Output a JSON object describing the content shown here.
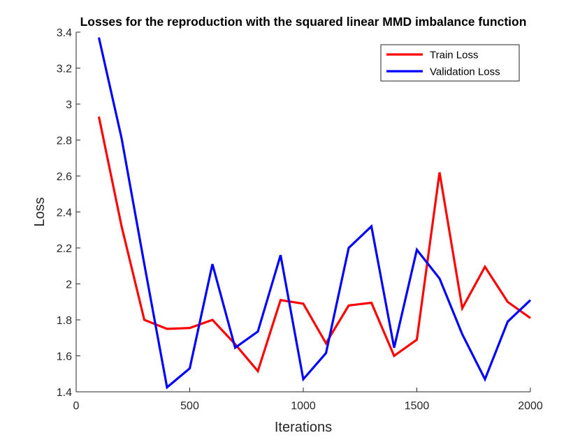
{
  "chart_data": {
    "type": "line",
    "title": "Losses for the reproduction with the squared linear MMD imbalance function",
    "xlabel": "Iterations",
    "ylabel": "Loss",
    "xlim": [
      0,
      2000
    ],
    "ylim": [
      1.4,
      3.4
    ],
    "xticks": [
      0,
      500,
      1000,
      1500,
      2000
    ],
    "xtick_labels": [
      "0",
      "500",
      "1000",
      "1500",
      "2000"
    ],
    "yticks": [
      1.4,
      1.6,
      1.8,
      2.0,
      2.2,
      2.4,
      2.6,
      2.8,
      3.0,
      3.2,
      3.4
    ],
    "ytick_labels": [
      "1.4",
      "1.6",
      "1.8",
      "2",
      "2.2",
      "2.4",
      "2.6",
      "2.8",
      "3",
      "3.2",
      "3.4"
    ],
    "grid": false,
    "legend_position": "top-right",
    "x": [
      100,
      200,
      300,
      400,
      500,
      600,
      700,
      800,
      900,
      1000,
      1100,
      1200,
      1300,
      1400,
      1500,
      1600,
      1700,
      1800,
      1900,
      2000
    ],
    "series": [
      {
        "name": "Train Loss",
        "color": "#ff0000",
        "values": [
          2.93,
          2.32,
          1.8,
          1.75,
          1.755,
          1.8,
          1.665,
          1.515,
          1.91,
          1.89,
          1.67,
          1.88,
          1.895,
          1.6,
          1.69,
          2.62,
          1.865,
          2.095,
          1.9,
          1.81
        ]
      },
      {
        "name": "Validation Loss",
        "color": "#0000ff",
        "values": [
          3.37,
          2.81,
          2.11,
          1.425,
          1.53,
          2.11,
          1.645,
          1.735,
          2.16,
          1.47,
          1.615,
          2.2,
          2.32,
          1.645,
          2.19,
          2.03,
          1.72,
          1.47,
          1.79,
          1.91
        ]
      }
    ]
  }
}
